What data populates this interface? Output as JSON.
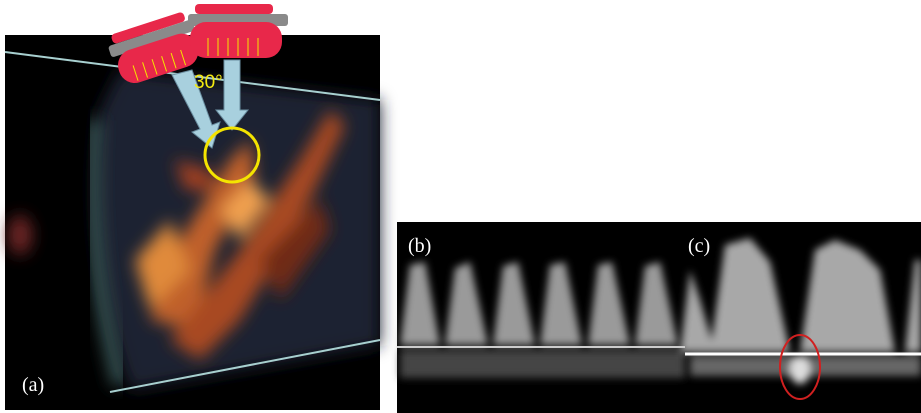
{
  "panels": {
    "a": {
      "label": "(a)",
      "angle_label": "30°"
    },
    "b": {
      "label": "(b)"
    },
    "c": {
      "label": "(c)"
    }
  }
}
